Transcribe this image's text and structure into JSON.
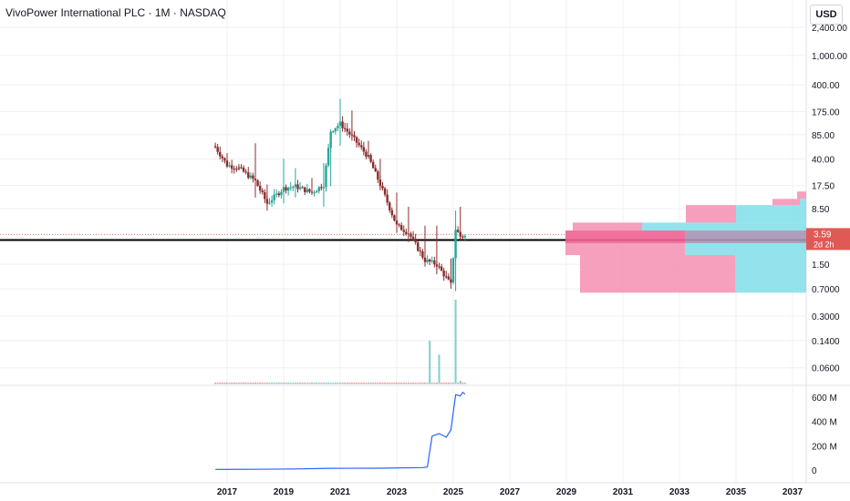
{
  "header": {
    "title": "VivoPower International PLC · 1M · NASDAQ",
    "currency": "USD"
  },
  "price_tag": {
    "price": "3.59",
    "countdown": "2d 2h"
  },
  "colors": {
    "up": "#26a69a",
    "down": "#8b2c2c",
    "volume_up": "#7fd1c8",
    "volume_down": "#ef9a9a",
    "profile_pink": "#f48fb1",
    "profile_cyan": "#80deea",
    "price_tag": "#e05a55",
    "hline": "#000000",
    "line_series": "#2962ff",
    "grid": "#eef0f3"
  },
  "chart_data": [
    {
      "type": "candlestick",
      "title": "VivoPower International PLC · 1M · NASDAQ",
      "scale": "log",
      "y_ticks": [
        "2,400.00",
        "1,000.00",
        "400.00",
        "175.00",
        "85.00",
        "40.00",
        "17.50",
        "8.50",
        "3.59",
        "1.50",
        "0.7000",
        "0.3000",
        "0.1400",
        "0.0600"
      ],
      "x_ticks": [
        "2017",
        "2019",
        "2021",
        "2023",
        "2025",
        "2027",
        "2029",
        "2031",
        "2033",
        "2035",
        "2037"
      ],
      "last_price": 3.59,
      "horizontal_line": 3.2,
      "ylim": [
        0.04,
        2400
      ],
      "candles_summary": [
        {
          "date": "2016-08",
          "open": 60,
          "high": 62,
          "low": 55,
          "close": 58
        },
        {
          "date": "2017-01",
          "open": 45,
          "high": 48,
          "low": 30,
          "close": 33
        },
        {
          "date": "2017-06",
          "open": 32,
          "high": 34,
          "low": 28,
          "close": 30
        },
        {
          "date": "2018-01",
          "open": 28,
          "high": 65,
          "low": 12,
          "close": 20
        },
        {
          "date": "2018-06",
          "open": 14,
          "high": 18,
          "low": 8,
          "close": 10
        },
        {
          "date": "2019-01",
          "open": 12,
          "high": 40,
          "low": 10,
          "close": 16
        },
        {
          "date": "2019-06",
          "open": 15,
          "high": 30,
          "low": 12,
          "close": 17
        },
        {
          "date": "2020-01",
          "open": 16,
          "high": 22,
          "low": 13,
          "close": 14
        },
        {
          "date": "2020-06",
          "open": 13,
          "high": 35,
          "low": 9,
          "close": 18
        },
        {
          "date": "2020-09",
          "open": 18,
          "high": 100,
          "low": 17,
          "close": 95
        },
        {
          "date": "2021-01",
          "open": 95,
          "high": 260,
          "low": 60,
          "close": 120
        },
        {
          "date": "2021-06",
          "open": 110,
          "high": 180,
          "low": 70,
          "close": 80
        },
        {
          "date": "2022-01",
          "open": 60,
          "high": 70,
          "low": 40,
          "close": 42
        },
        {
          "date": "2022-06",
          "open": 35,
          "high": 40,
          "low": 15,
          "close": 18
        },
        {
          "date": "2023-01",
          "open": 10,
          "high": 14,
          "low": 4,
          "close": 5
        },
        {
          "date": "2023-06",
          "open": 6,
          "high": 9,
          "low": 3,
          "close": 4
        },
        {
          "date": "2024-01",
          "open": 4,
          "high": 5,
          "low": 1.4,
          "close": 1.7
        },
        {
          "date": "2024-06",
          "open": 2,
          "high": 5,
          "low": 1.1,
          "close": 1.5
        },
        {
          "date": "2024-12",
          "open": 1.3,
          "high": 1.8,
          "low": 0.7,
          "close": 0.8
        },
        {
          "date": "2025-02",
          "open": 0.8,
          "high": 8,
          "low": 0.65,
          "close": 4.5
        },
        {
          "date": "2025-04",
          "open": 4.5,
          "high": 9,
          "low": 3.2,
          "close": 3.59
        }
      ]
    },
    {
      "type": "bar",
      "title": "",
      "ylabel": "",
      "scale": "log",
      "y_ticks": [
        "0.3000",
        "0.1400",
        "0.0600"
      ],
      "x": [
        "2024-03",
        "2024-07",
        "2024-09",
        "2025-02",
        "2025-04"
      ],
      "values": [
        0.14,
        0.09,
        0.035,
        0.5,
        0.04
      ]
    },
    {
      "type": "line",
      "title": "",
      "ylabel": "",
      "y_ticks": [
        "600 M",
        "400 M",
        "200 M",
        "0"
      ],
      "ylim": [
        0,
        650
      ],
      "x": [
        "2016-08",
        "2018-01",
        "2019-06",
        "2020-09",
        "2022-06",
        "2023-12",
        "2024-02",
        "2024-04",
        "2024-07",
        "2024-10",
        "2024-12",
        "2025-02",
        "2025-04",
        "2025-05",
        "2025-06"
      ],
      "values": [
        5,
        6,
        9,
        14,
        15,
        20,
        25,
        280,
        300,
        270,
        330,
        620,
        610,
        640,
        625
      ]
    }
  ]
}
